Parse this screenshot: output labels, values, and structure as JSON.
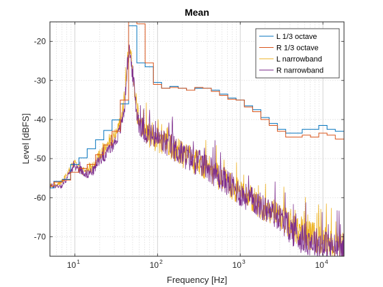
{
  "chart_data": {
    "type": "line",
    "title": "Mean",
    "xlabel": "Frequency [Hz]",
    "ylabel": "Level [dBFS]",
    "xscale": "log",
    "xlim": [
      5,
      18000
    ],
    "ylim": [
      -75,
      -15
    ],
    "grid": "on",
    "legend_position": "top-right",
    "x_ticks": [
      {
        "base": "10",
        "exp": "1",
        "value": 10
      },
      {
        "base": "10",
        "exp": "2",
        "value": 100
      },
      {
        "base": "10",
        "exp": "3",
        "value": 1000
      },
      {
        "base": "10",
        "exp": "4",
        "value": 10000
      }
    ],
    "y_ticks": [
      {
        "label": "-20",
        "value": -20
      },
      {
        "label": "-30",
        "value": -30
      },
      {
        "label": "-40",
        "value": -40
      },
      {
        "label": "-50",
        "value": -50
      },
      {
        "label": "-60",
        "value": -60
      },
      {
        "label": "-70",
        "value": -70
      }
    ],
    "series": [
      {
        "name": "L 1/3 octave",
        "color": "#0072BD",
        "kind": "step",
        "x": [
          5,
          5.6,
          7.1,
          8.9,
          11.2,
          14.1,
          17.8,
          22.4,
          28.2,
          35.5,
          44.7,
          56.2,
          70.8,
          89.1,
          112,
          141,
          178,
          224,
          282,
          355,
          447,
          562,
          708,
          891,
          1122,
          1413,
          1778,
          2239,
          2818,
          3548,
          4467,
          5623,
          7079,
          8913,
          11220,
          14125,
          18000
        ],
        "y": [
          -57.5,
          -55.8,
          -55.3,
          -51.5,
          -49.8,
          -47.5,
          -45.2,
          -42.8,
          -40.1,
          -36.0,
          -16.0,
          -25.5,
          -26.5,
          -30.5,
          -32.0,
          -31.5,
          -32.0,
          -32.5,
          -32.0,
          -32.0,
          -32.5,
          -33.5,
          -34.5,
          -35.0,
          -36.5,
          -37.5,
          -39.5,
          -41.0,
          -42.5,
          -43.5,
          -43.5,
          -42.5,
          -42.5,
          -41.5,
          -42.5,
          -43.0,
          -43.0
        ]
      },
      {
        "name": "R 1/3 octave",
        "color": "#D95319",
        "kind": "step",
        "x": [
          5,
          5.6,
          7.1,
          8.9,
          11.2,
          14.1,
          17.8,
          22.4,
          28.2,
          35.5,
          44.7,
          56.2,
          70.8,
          89.1,
          112,
          141,
          178,
          224,
          282,
          355,
          447,
          562,
          708,
          891,
          1122,
          1413,
          1778,
          2239,
          2818,
          3548,
          4467,
          5623,
          7079,
          8913,
          11220,
          14125,
          18000
        ],
        "y": [
          -57.0,
          -56.0,
          -55.5,
          -53.5,
          -52.5,
          -51.5,
          -49.0,
          -46.5,
          -43.0,
          -35.0,
          -14.5,
          -15.5,
          -25.5,
          -31.0,
          -32.0,
          -31.8,
          -32.0,
          -32.5,
          -31.8,
          -32.0,
          -32.8,
          -33.8,
          -34.8,
          -35.0,
          -36.8,
          -38.0,
          -40.0,
          -41.5,
          -43.0,
          -44.5,
          -44.5,
          -44.0,
          -44.5,
          -43.5,
          -44.0,
          -45.0,
          -45.0
        ]
      },
      {
        "name": "L narrowband",
        "color": "#EDB120",
        "kind": "noise",
        "x": [
          5,
          6,
          7,
          8,
          9,
          10,
          12,
          14,
          17,
          20,
          24,
          28,
          32,
          36,
          40,
          43,
          46,
          50,
          55,
          60,
          70,
          80,
          100,
          120,
          150,
          200,
          250,
          300,
          400,
          500,
          700,
          1000,
          1500,
          2000,
          3000,
          4000,
          5000,
          7000,
          10000,
          14000,
          18000
        ],
        "y": [
          -57,
          -57,
          -56,
          -54,
          -52,
          -51,
          -53,
          -53,
          -52,
          -49,
          -47,
          -45,
          -43,
          -40,
          -35,
          -25,
          -22,
          -27,
          -36,
          -41,
          -43,
          -44,
          -45,
          -46,
          -47,
          -49,
          -50,
          -51,
          -52,
          -54,
          -56,
          -59,
          -61,
          -63,
          -65,
          -67,
          -69,
          -70,
          -71,
          -72,
          -72
        ],
        "noise": [
          0.6,
          0.6,
          0.7,
          0.8,
          0.8,
          1.0,
          1.2,
          1.2,
          1.3,
          1.5,
          1.5,
          1.5,
          1.7,
          1.8,
          2.0,
          2.0,
          2.2,
          2.5,
          3.0,
          3.0,
          3.0,
          3.2,
          3.5,
          3.5,
          3.5,
          3.5,
          3.5,
          3.5,
          3.5,
          3.5,
          3.5,
          3.5,
          3.5,
          3.5,
          3.5,
          3.8,
          4.0,
          4.0,
          4.0,
          4.0,
          4.0
        ]
      },
      {
        "name": "R narrowband",
        "color": "#7E2F8E",
        "kind": "noise",
        "x": [
          5,
          6,
          7,
          8,
          9,
          10,
          12,
          14,
          17,
          20,
          24,
          28,
          32,
          36,
          40,
          43,
          46,
          50,
          55,
          60,
          70,
          80,
          100,
          120,
          150,
          200,
          250,
          300,
          400,
          500,
          700,
          1000,
          1500,
          2000,
          3000,
          4000,
          5000,
          7000,
          10000,
          14000,
          18000
        ],
        "y": [
          -57,
          -57,
          -57,
          -55,
          -53,
          -52,
          -53,
          -54,
          -53,
          -50,
          -49,
          -47,
          -45,
          -42,
          -37,
          -26,
          -23,
          -28,
          -37,
          -41,
          -43,
          -44,
          -45,
          -46,
          -47,
          -49,
          -50,
          -51,
          -52,
          -54,
          -56,
          -59,
          -61,
          -63,
          -65,
          -68,
          -70,
          -71,
          -72,
          -73,
          -73
        ],
        "noise": [
          0.6,
          0.6,
          0.7,
          0.8,
          0.8,
          1.0,
          1.2,
          1.2,
          1.3,
          1.5,
          1.5,
          1.5,
          1.7,
          1.8,
          2.0,
          2.0,
          2.2,
          2.5,
          3.0,
          3.0,
          3.0,
          3.2,
          3.5,
          3.5,
          3.5,
          3.5,
          3.5,
          3.5,
          3.5,
          3.5,
          3.5,
          3.5,
          3.5,
          3.5,
          3.5,
          3.8,
          4.0,
          4.0,
          4.0,
          4.0,
          4.0
        ]
      }
    ]
  }
}
